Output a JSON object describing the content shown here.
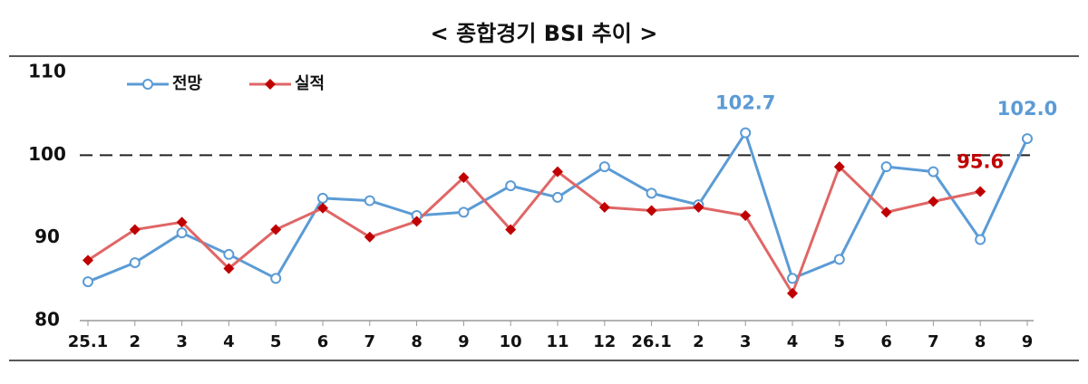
{
  "chart_data": {
    "type": "line",
    "title": "< 종합경기 BSI 추이 >",
    "categories": [
      "25.1",
      "2",
      "3",
      "4",
      "5",
      "6",
      "7",
      "8",
      "9",
      "10",
      "11",
      "12",
      "26.1",
      "2",
      "3",
      "4",
      "5",
      "6",
      "7",
      "8",
      "9"
    ],
    "series": [
      {
        "name": "전망",
        "color": "#5b9bd5",
        "marker": "circle",
        "values": [
          84.7,
          87.0,
          90.6,
          88.0,
          85.1,
          94.8,
          94.5,
          92.7,
          93.1,
          96.3,
          94.9,
          98.6,
          95.4,
          94.0,
          102.7,
          85.1,
          87.4,
          98.6,
          98.0,
          89.8,
          102.0
        ],
        "value_labels": [
          null,
          null,
          null,
          null,
          null,
          null,
          null,
          null,
          null,
          null,
          null,
          null,
          null,
          null,
          "102.7",
          null,
          null,
          null,
          null,
          null,
          "102.0"
        ]
      },
      {
        "name": "실적",
        "color": "#e06666",
        "marker_color": "#c00000",
        "marker": "diamond",
        "values": [
          87.3,
          91.0,
          91.9,
          86.3,
          91.0,
          93.6,
          90.1,
          92.0,
          97.3,
          91.0,
          98.0,
          93.7,
          93.3,
          93.7,
          92.7,
          83.3,
          98.6,
          93.1,
          94.4,
          95.6,
          null
        ],
        "value_labels": [
          null,
          null,
          null,
          null,
          null,
          null,
          null,
          null,
          null,
          null,
          null,
          null,
          null,
          null,
          null,
          null,
          null,
          null,
          null,
          "95.6",
          null
        ]
      }
    ],
    "ylim": [
      80,
      110
    ],
    "yticks": [
      80,
      90,
      100,
      110
    ],
    "reference_line": 100,
    "legend": "top-left"
  }
}
